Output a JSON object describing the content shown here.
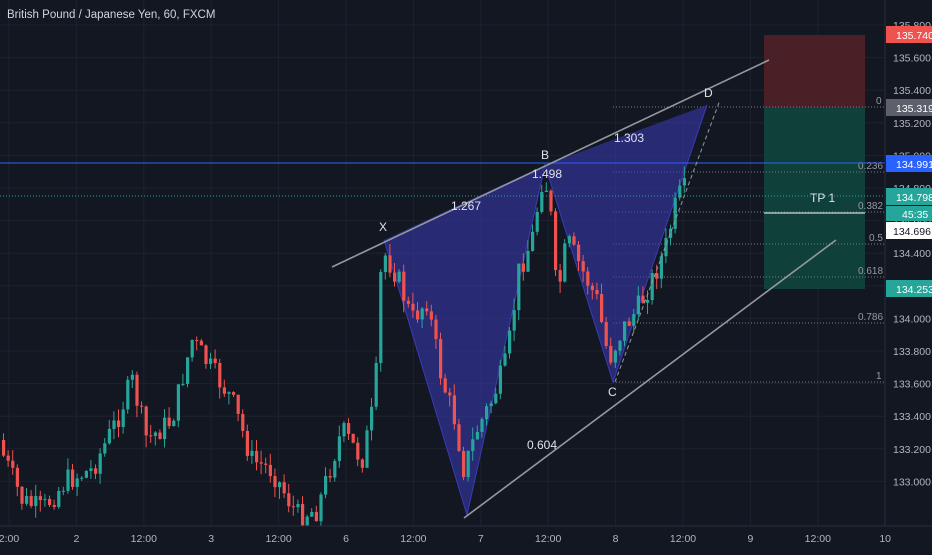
{
  "symbol": {
    "title": "British Pound / Japanese Yen, 60, FXCM"
  },
  "price_axis": {
    "ticks": [
      "135.800",
      "135.600",
      "135.400",
      "135.200",
      "135.000",
      "134.800",
      "134.600",
      "134.400",
      "134.200",
      "134.000",
      "133.800",
      "133.600",
      "133.400",
      "133.200",
      "133.000"
    ],
    "labels": {
      "stop": "135.740",
      "entry": "135.319",
      "hline": "134.991",
      "tp": "134.798",
      "countdown": "45:35",
      "last": "134.696",
      "target2": "134.253"
    }
  },
  "time_axis": {
    "labels": [
      "2:00",
      "2",
      "12:00",
      "3",
      "12:00",
      "6",
      "12:00",
      "7",
      "12:00",
      "8",
      "12:00",
      "9",
      "12:00",
      "10"
    ]
  },
  "pattern": {
    "points": {
      "x": "X",
      "b": "B",
      "c": "C",
      "d": "D"
    },
    "ratios": {
      "xb": "1.267",
      "b": "1.498",
      "bd": "1.303",
      "xc": "0.604"
    }
  },
  "fib_levels": [
    "0",
    "0.236",
    "0.382",
    "0.5",
    "0.618",
    "0.786",
    "1"
  ],
  "position_tool": {
    "tp_label": "TP 1"
  },
  "colors": {
    "background": "#131722",
    "up_candle": "#26a69a",
    "down_candle": "#ef5350",
    "pattern_fill": "#3a3ab8",
    "horizontal_line": "#2962ff",
    "stop_zone": "#4a1f26",
    "target_zone": "#10403a"
  }
}
